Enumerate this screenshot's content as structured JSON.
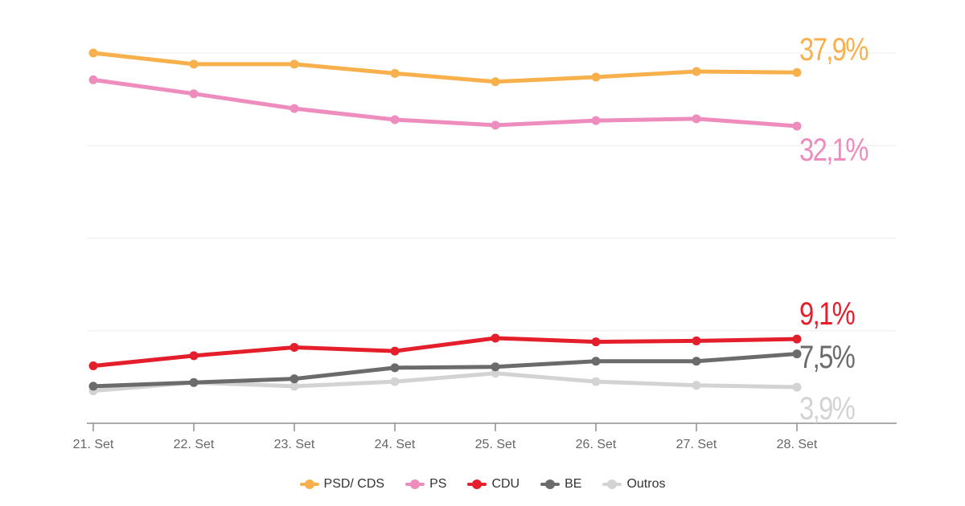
{
  "chart_data": {
    "type": "line",
    "title": "",
    "xlabel": "",
    "ylabel": "",
    "ylim": [
      0,
      40
    ],
    "y_gridlines": [
      10,
      20,
      30,
      40
    ],
    "y_tick_labels_shown": false,
    "grid": true,
    "legend_position": "bottom-center",
    "categories": [
      "21. Set",
      "22. Set",
      "23. Set",
      "24. Set",
      "25. Set",
      "26. Set",
      "27. Set",
      "28. Set"
    ],
    "series": [
      {
        "name": "PSD/ CDS",
        "color": "#f7b04c",
        "values": [
          40.0,
          38.8,
          38.8,
          37.8,
          36.9,
          37.4,
          38.0,
          37.9
        ],
        "end_label": "37,9%"
      },
      {
        "name": "PS",
        "color": "#ef8cbe",
        "values": [
          37.1,
          35.6,
          34.0,
          32.8,
          32.2,
          32.7,
          32.9,
          32.1
        ],
        "end_label": "32,1%"
      },
      {
        "name": "CDU",
        "color": "#e41f2b",
        "values": [
          6.2,
          7.3,
          8.2,
          7.8,
          9.2,
          8.8,
          8.9,
          9.1
        ],
        "end_label": "9,1%"
      },
      {
        "name": "BE",
        "color": "#6b6b6b",
        "values": [
          4.0,
          4.4,
          4.8,
          6.0,
          6.1,
          6.7,
          6.7,
          7.5
        ],
        "end_label": "7,5%"
      },
      {
        "name": "Outros",
        "color": "#d3d3d3",
        "values": [
          3.5,
          4.4,
          4.0,
          4.5,
          5.4,
          4.5,
          4.1,
          3.9
        ],
        "end_label": "3,9%"
      }
    ]
  }
}
